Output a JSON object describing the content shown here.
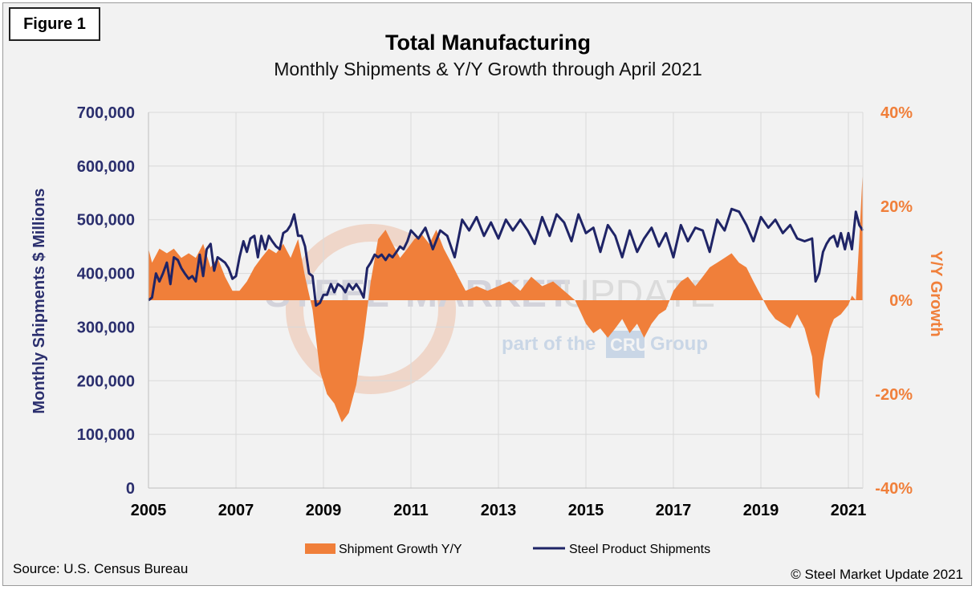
{
  "figure_label": "Figure 1",
  "source": "Source: U.S. Census Bureau",
  "copyright": "© Steel Market Update 2021",
  "watermark": {
    "line1_part1": "STEEL",
    "line1_part2": "MARKET",
    "line1_part3": "UPDATE",
    "line2_part1": "part of the",
    "line2_logo": "CRU",
    "line2_part2": "Group"
  },
  "colors": {
    "navy": "#1f2466",
    "orange": "#f07f3a",
    "grid": "#d9d9d9"
  },
  "chart_data": {
    "type": "line",
    "title": "Total Manufacturing",
    "subtitle": "Monthly Shipments & Y/Y Growth through April 2021",
    "ylabel": "Monthly Shipments $ Millions",
    "y2label": "Y/Y Growth",
    "xlim": [
      2005,
      2021.33
    ],
    "ylim": [
      0,
      700000
    ],
    "y2lim": [
      -40,
      40
    ],
    "grid": true,
    "legend_position": "bottom",
    "x_ticks": [
      "2005",
      "2007",
      "2009",
      "2011",
      "2013",
      "2015",
      "2017",
      "2019",
      "2021"
    ],
    "y_ticks": [
      "0",
      "100,000",
      "200,000",
      "300,000",
      "400,000",
      "500,000",
      "600,000",
      "700,000"
    ],
    "y2_ticks": [
      "-40%",
      "-20%",
      "0%",
      "20%",
      "40%"
    ],
    "series": [
      {
        "name": "Shipment Growth Y/Y",
        "kind": "area",
        "axis": "right",
        "color": "#f07f3a",
        "x": [
          2005.0,
          2005.08,
          2005.25,
          2005.42,
          2005.58,
          2005.75,
          2005.92,
          2006.08,
          2006.25,
          2006.42,
          2006.58,
          2006.75,
          2006.92,
          2007.08,
          2007.25,
          2007.42,
          2007.58,
          2007.75,
          2007.92,
          2008.08,
          2008.25,
          2008.42,
          2008.58,
          2008.75,
          2008.92,
          2009.08,
          2009.25,
          2009.42,
          2009.58,
          2009.75,
          2009.92,
          2010.08,
          2010.25,
          2010.42,
          2010.58,
          2010.75,
          2010.92,
          2011.08,
          2011.25,
          2011.42,
          2011.58,
          2011.75,
          2011.92,
          2012.08,
          2012.25,
          2012.5,
          2012.75,
          2013.0,
          2013.25,
          2013.5,
          2013.75,
          2014.0,
          2014.25,
          2014.5,
          2014.75,
          2015.0,
          2015.17,
          2015.33,
          2015.5,
          2015.67,
          2015.83,
          2016.0,
          2016.17,
          2016.33,
          2016.5,
          2016.67,
          2016.83,
          2017.0,
          2017.17,
          2017.33,
          2017.5,
          2017.67,
          2017.83,
          2018.0,
          2018.17,
          2018.33,
          2018.5,
          2018.67,
          2018.83,
          2019.0,
          2019.17,
          2019.33,
          2019.5,
          2019.67,
          2019.83,
          2020.0,
          2020.17,
          2020.25,
          2020.33,
          2020.42,
          2020.5,
          2020.58,
          2020.67,
          2020.83,
          2021.0,
          2021.08,
          2021.17,
          2021.25,
          2021.33
        ],
        "y": [
          11,
          8,
          11,
          10,
          11,
          9,
          10,
          9,
          12,
          7,
          9,
          5,
          2,
          2,
          4,
          7,
          9,
          11,
          10,
          12,
          9,
          13,
          5,
          -2,
          -15,
          -20,
          -22,
          -26,
          -24,
          -18,
          -8,
          4,
          13,
          15,
          12,
          9,
          11,
          13,
          14,
          12,
          15,
          11,
          8,
          5,
          2,
          3,
          2,
          3,
          4,
          2,
          5,
          3,
          4,
          2,
          0,
          -5,
          -7,
          -6,
          -8,
          -6,
          -4,
          -7,
          -5,
          -8,
          -5,
          -3,
          -2,
          2,
          4,
          5,
          3,
          5,
          7,
          8,
          9,
          10,
          8,
          7,
          4,
          1,
          -2,
          -4,
          -5,
          -6,
          -3,
          -6,
          -12,
          -20,
          -21,
          -13,
          -9,
          -6,
          -4,
          -3,
          -1,
          1,
          0,
          13,
          28
        ]
      },
      {
        "name": "Steel Product Shipments",
        "kind": "line",
        "axis": "left",
        "color": "#1f2466",
        "x": [
          2005.0,
          2005.08,
          2005.17,
          2005.25,
          2005.33,
          2005.42,
          2005.5,
          2005.58,
          2005.67,
          2005.75,
          2005.83,
          2005.92,
          2006.0,
          2006.08,
          2006.17,
          2006.25,
          2006.33,
          2006.42,
          2006.5,
          2006.58,
          2006.67,
          2006.75,
          2006.83,
          2006.92,
          2007.0,
          2007.08,
          2007.17,
          2007.25,
          2007.33,
          2007.42,
          2007.5,
          2007.58,
          2007.67,
          2007.75,
          2007.83,
          2007.92,
          2008.0,
          2008.08,
          2008.17,
          2008.25,
          2008.33,
          2008.42,
          2008.5,
          2008.58,
          2008.67,
          2008.75,
          2008.83,
          2008.92,
          2009.0,
          2009.08,
          2009.17,
          2009.25,
          2009.33,
          2009.42,
          2009.5,
          2009.58,
          2009.67,
          2009.75,
          2009.83,
          2009.92,
          2010.0,
          2010.08,
          2010.17,
          2010.25,
          2010.33,
          2010.42,
          2010.5,
          2010.58,
          2010.67,
          2010.75,
          2010.83,
          2010.92,
          2011.0,
          2011.17,
          2011.33,
          2011.5,
          2011.67,
          2011.83,
          2012.0,
          2012.17,
          2012.33,
          2012.5,
          2012.67,
          2012.83,
          2013.0,
          2013.17,
          2013.33,
          2013.5,
          2013.67,
          2013.83,
          2014.0,
          2014.17,
          2014.33,
          2014.5,
          2014.67,
          2014.83,
          2015.0,
          2015.17,
          2015.33,
          2015.5,
          2015.67,
          2015.83,
          2016.0,
          2016.17,
          2016.33,
          2016.5,
          2016.67,
          2016.83,
          2017.0,
          2017.17,
          2017.33,
          2017.5,
          2017.67,
          2017.83,
          2018.0,
          2018.17,
          2018.33,
          2018.5,
          2018.67,
          2018.83,
          2019.0,
          2019.17,
          2019.33,
          2019.5,
          2019.67,
          2019.83,
          2020.0,
          2020.17,
          2020.25,
          2020.33,
          2020.42,
          2020.5,
          2020.58,
          2020.67,
          2020.75,
          2020.83,
          2020.92,
          2021.0,
          2021.08,
          2021.17,
          2021.25,
          2021.33
        ],
        "y": [
          350000,
          355000,
          400000,
          385000,
          400000,
          420000,
          380000,
          430000,
          425000,
          410000,
          400000,
          390000,
          395000,
          385000,
          435000,
          395000,
          445000,
          455000,
          405000,
          430000,
          425000,
          420000,
          410000,
          390000,
          395000,
          430000,
          460000,
          440000,
          465000,
          470000,
          430000,
          470000,
          445000,
          470000,
          460000,
          450000,
          445000,
          475000,
          480000,
          490000,
          510000,
          470000,
          470000,
          450000,
          400000,
          395000,
          340000,
          345000,
          360000,
          360000,
          380000,
          365000,
          380000,
          375000,
          365000,
          380000,
          370000,
          380000,
          370000,
          355000,
          410000,
          420000,
          435000,
          430000,
          435000,
          425000,
          435000,
          430000,
          440000,
          450000,
          445000,
          460000,
          480000,
          465000,
          485000,
          445000,
          480000,
          470000,
          430000,
          500000,
          480000,
          505000,
          470000,
          495000,
          465000,
          500000,
          480000,
          500000,
          480000,
          455000,
          505000,
          470000,
          510000,
          495000,
          460000,
          510000,
          475000,
          485000,
          440000,
          490000,
          470000,
          430000,
          480000,
          440000,
          465000,
          485000,
          450000,
          475000,
          430000,
          490000,
          460000,
          485000,
          480000,
          440000,
          500000,
          480000,
          520000,
          515000,
          490000,
          460000,
          505000,
          485000,
          500000,
          475000,
          490000,
          465000,
          460000,
          465000,
          385000,
          400000,
          440000,
          455000,
          465000,
          470000,
          450000,
          475000,
          445000,
          475000,
          445000,
          515000,
          490000,
          480000
        ]
      }
    ]
  }
}
